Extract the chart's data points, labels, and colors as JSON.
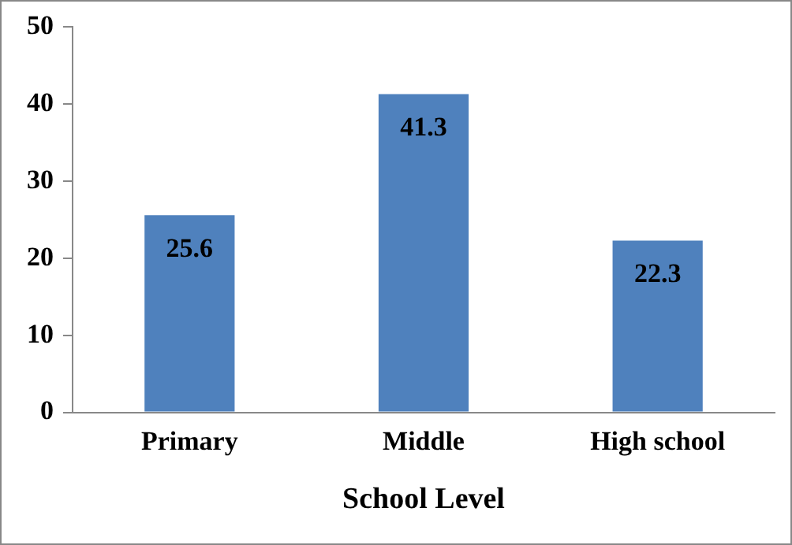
{
  "chart_data": {
    "type": "bar",
    "xlabel": "School Level",
    "categories": [
      "Primary",
      "Middle",
      "High school"
    ],
    "values": [
      25.6,
      41.3,
      22.3
    ],
    "color": "#4f81bd",
    "ylim": [
      0,
      50
    ],
    "yticks": [
      0,
      10,
      20,
      30,
      40,
      50
    ],
    "grid": false,
    "legend": false,
    "data_labels": true
  }
}
